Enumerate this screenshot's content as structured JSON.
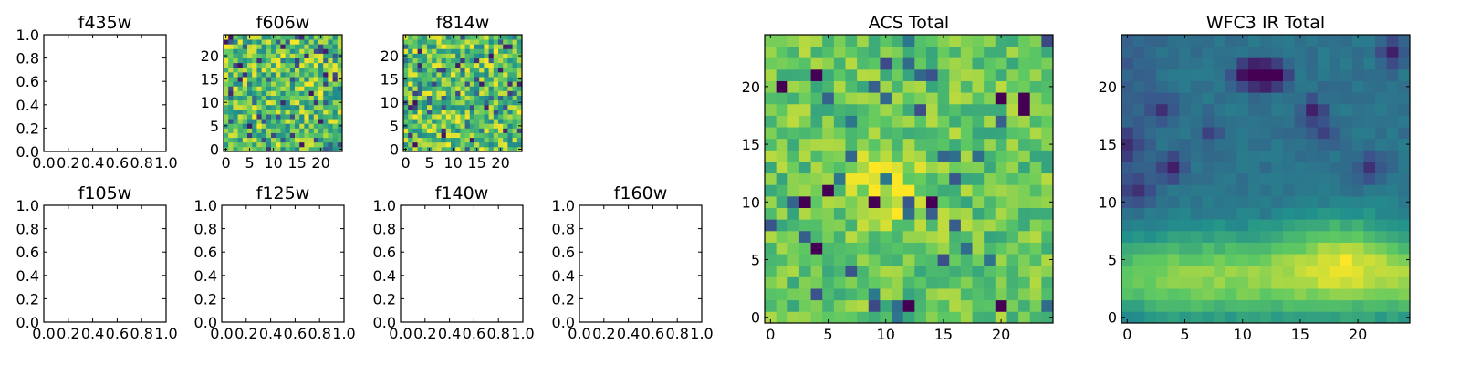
{
  "chart_data": [
    {
      "type": "heatmap",
      "title": "f435w",
      "empty": true,
      "xlim": [
        0,
        1
      ],
      "ylim": [
        0,
        1
      ],
      "xticks": [
        "0.0",
        "0.2",
        "0.4",
        "0.6",
        "0.8",
        "1.0"
      ],
      "yticks": [
        "0.0",
        "0.2",
        "0.4",
        "0.6",
        "0.8",
        "1.0"
      ]
    },
    {
      "type": "heatmap",
      "title": "f606w",
      "grid_size": 25,
      "colormap": "viridis",
      "xlim": [
        -0.5,
        24.5
      ],
      "ylim": [
        -0.5,
        24.5
      ],
      "xticks": [
        "0",
        "5",
        "10",
        "15",
        "20"
      ],
      "yticks": [
        "0",
        "5",
        "10",
        "15",
        "20"
      ],
      "values": "random per-pixel noise, mostly high (green-yellow) with scattered dark pixels"
    },
    {
      "type": "heatmap",
      "title": "f814w",
      "grid_size": 25,
      "colormap": "viridis",
      "xlim": [
        -0.5,
        24.5
      ],
      "ylim": [
        -0.5,
        24.5
      ],
      "xticks": [
        "0",
        "5",
        "10",
        "15",
        "20"
      ],
      "yticks": [
        "0",
        "5",
        "10",
        "15",
        "20"
      ],
      "values": "random per-pixel noise, mostly high (green-yellow) with scattered dark pixels"
    },
    {
      "type": "heatmap",
      "title": "f105w",
      "empty": true,
      "xlim": [
        0,
        1
      ],
      "ylim": [
        0,
        1
      ],
      "xticks": [
        "0.0",
        "0.2",
        "0.4",
        "0.6",
        "0.8",
        "1.0"
      ],
      "yticks": [
        "0.0",
        "0.2",
        "0.4",
        "0.6",
        "0.8",
        "1.0"
      ]
    },
    {
      "type": "heatmap",
      "title": "f125w",
      "empty": true,
      "xlim": [
        0,
        1
      ],
      "ylim": [
        0,
        1
      ],
      "xticks": [
        "0.0",
        "0.2",
        "0.4",
        "0.6",
        "0.8",
        "1.0"
      ],
      "yticks": [
        "0.0",
        "0.2",
        "0.4",
        "0.6",
        "0.8",
        "1.0"
      ]
    },
    {
      "type": "heatmap",
      "title": "f140w",
      "empty": true,
      "xlim": [
        0,
        1
      ],
      "ylim": [
        0,
        1
      ],
      "xticks": [
        "0.0",
        "0.2",
        "0.4",
        "0.6",
        "0.8",
        "1.0"
      ],
      "yticks": [
        "0.0",
        "0.2",
        "0.4",
        "0.6",
        "0.8",
        "1.0"
      ]
    },
    {
      "type": "heatmap",
      "title": "f160w",
      "empty": true,
      "xlim": [
        0,
        1
      ],
      "ylim": [
        0,
        1
      ],
      "xticks": [
        "0.0",
        "0.2",
        "0.4",
        "0.6",
        "0.8",
        "1.0"
      ],
      "yticks": [
        "0.0",
        "0.2",
        "0.4",
        "0.6",
        "0.8",
        "1.0"
      ]
    },
    {
      "type": "heatmap",
      "title": "ACS Total",
      "grid_size": 25,
      "colormap": "viridis",
      "xlim": [
        -0.5,
        24.5
      ],
      "ylim": [
        -0.5,
        24.5
      ],
      "xticks": [
        "0",
        "5",
        "10",
        "15",
        "20"
      ],
      "yticks": [
        "0",
        "5",
        "10",
        "15",
        "20"
      ],
      "values": "random per-pixel noise, mostly green-yellow, brighter yellow blob near x=8-12, y=9-13, a few dark purple pixels"
    },
    {
      "type": "heatmap",
      "title": "WFC3 IR Total",
      "grid_size": 25,
      "colormap": "viridis",
      "xlim": [
        -0.5,
        24.5
      ],
      "ylim": [
        -0.5,
        24.5
      ],
      "xticks": [
        "0",
        "5",
        "10",
        "15",
        "20"
      ],
      "yticks": [
        "0",
        "5",
        "10",
        "15",
        "20"
      ],
      "values": "smooth field: bright yellow band along the bottom (y=0-7), peak near x=16-21 y=3-7, darker teal/purple upper region with dark spots near (12,21) and (4,13)"
    }
  ],
  "colormap_stops": [
    "#440154",
    "#3b528b",
    "#21918c",
    "#5ec962",
    "#fde725"
  ]
}
